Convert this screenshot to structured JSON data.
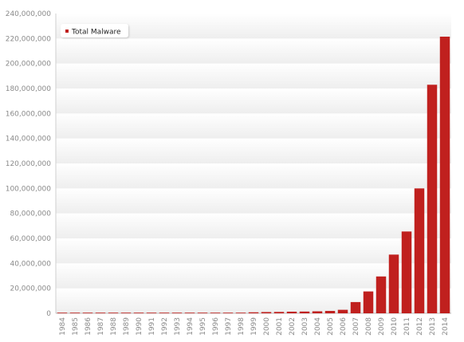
{
  "chart_data": {
    "type": "bar",
    "title": "",
    "xlabel": "",
    "ylabel": "",
    "categories": [
      "1984",
      "1985",
      "1986",
      "1987",
      "1988",
      "1989",
      "1990",
      "1991",
      "1992",
      "1993",
      "1994",
      "1995",
      "1996",
      "1997",
      "1998",
      "1999",
      "2000",
      "2001",
      "2002",
      "2003",
      "2004",
      "2005",
      "2006",
      "2007",
      "2008",
      "2009",
      "2010",
      "2011",
      "2012",
      "2013",
      "2014"
    ],
    "series": [
      {
        "name": "Total Malware",
        "color": "#c0201e",
        "values": [
          0,
          0,
          0,
          0,
          0,
          0,
          0,
          0,
          0,
          0,
          0,
          0,
          0,
          0,
          500000,
          800000,
          1000000,
          1100000,
          1300000,
          1400000,
          1600000,
          1900000,
          2800000,
          9000000,
          17500000,
          29500000,
          47000000,
          65500000,
          100000000,
          183000000,
          221500000
        ]
      }
    ],
    "ylim": [
      0,
      240000000
    ],
    "yticks": [
      0,
      20000000,
      40000000,
      60000000,
      80000000,
      100000000,
      120000000,
      140000000,
      160000000,
      180000000,
      200000000,
      220000000,
      240000000
    ],
    "ytick_labels": [
      "0",
      "20,000,000",
      "40,000,000",
      "60,000,000",
      "80,000,000",
      "100,000,000",
      "120,000,000",
      "140,000,000",
      "160,000,000",
      "180,000,000",
      "200,000,000",
      "220,000,000",
      "240,000,000"
    ],
    "grid": "horizontal-bands",
    "legend_position": "top-left"
  }
}
